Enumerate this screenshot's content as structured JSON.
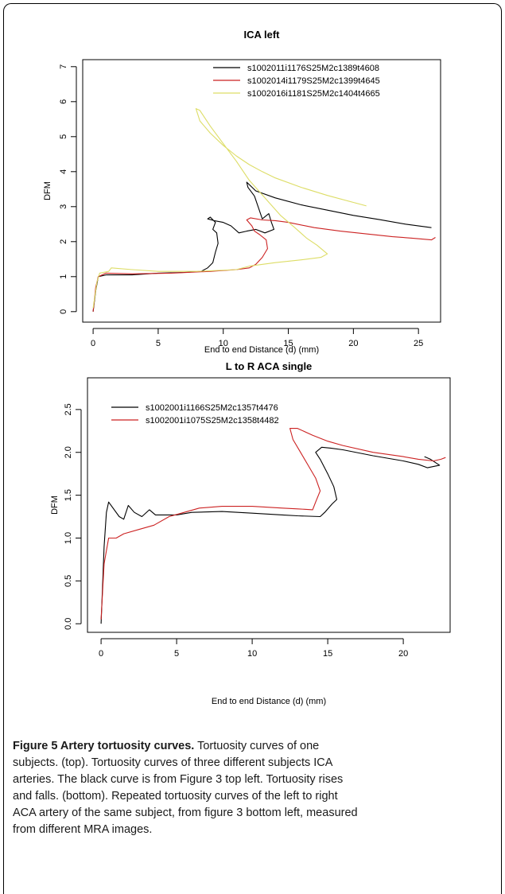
{
  "chart_data": [
    {
      "type": "line",
      "title": "ICA left",
      "xlabel": "End to end Distance (d) (mm)",
      "ylabel": "DFM",
      "xlim": [
        -0.8,
        26.7
      ],
      "ylim": [
        -0.3,
        7.2
      ],
      "xticks": [
        0,
        5,
        10,
        15,
        20,
        25
      ],
      "yticks": [
        0,
        1,
        2,
        3,
        4,
        5,
        6,
        7
      ],
      "legend_position": "top-right",
      "series": [
        {
          "name": "s1002011i1176S25M2c1389t4608",
          "color": "#000000",
          "points": [
            [
              0,
              0
            ],
            [
              0.2,
              0.6
            ],
            [
              0.4,
              1.0
            ],
            [
              1,
              1.05
            ],
            [
              3,
              1.05
            ],
            [
              5,
              1.1
            ],
            [
              7,
              1.12
            ],
            [
              8.3,
              1.15
            ],
            [
              8.8,
              1.25
            ],
            [
              9.2,
              1.4
            ],
            [
              9.4,
              1.7
            ],
            [
              9.6,
              1.95
            ],
            [
              9.5,
              2.25
            ],
            [
              9.2,
              2.35
            ],
            [
              9.4,
              2.55
            ],
            [
              9.0,
              2.7
            ],
            [
              8.8,
              2.65
            ],
            [
              9.3,
              2.6
            ],
            [
              10.0,
              2.55
            ],
            [
              10.6,
              2.45
            ],
            [
              11.2,
              2.25
            ],
            [
              11.8,
              2.3
            ],
            [
              12.5,
              2.35
            ],
            [
              13.2,
              2.25
            ],
            [
              13.9,
              2.35
            ],
            [
              13.7,
              2.55
            ],
            [
              13.5,
              2.8
            ],
            [
              13.0,
              2.65
            ],
            [
              12.4,
              3.3
            ],
            [
              11.9,
              3.55
            ],
            [
              11.8,
              3.7
            ],
            [
              12.5,
              3.45
            ],
            [
              14,
              3.25
            ],
            [
              16,
              3.05
            ],
            [
              18,
              2.9
            ],
            [
              20,
              2.75
            ],
            [
              22,
              2.63
            ],
            [
              24,
              2.5
            ],
            [
              26,
              2.4
            ]
          ]
        },
        {
          "name": "s1002014i1179S25M2c1399t4645",
          "color": "#cc2222",
          "points": [
            [
              0,
              0
            ],
            [
              0.2,
              0.7
            ],
            [
              0.4,
              1.0
            ],
            [
              1,
              1.1
            ],
            [
              3,
              1.08
            ],
            [
              6,
              1.1
            ],
            [
              9,
              1.15
            ],
            [
              11,
              1.2
            ],
            [
              12,
              1.25
            ],
            [
              12.5,
              1.35
            ],
            [
              13,
              1.55
            ],
            [
              13.4,
              1.8
            ],
            [
              13.3,
              2.05
            ],
            [
              12.8,
              2.2
            ],
            [
              12.4,
              2.3
            ],
            [
              12.2,
              2.45
            ],
            [
              11.8,
              2.62
            ],
            [
              12.1,
              2.68
            ],
            [
              13,
              2.62
            ],
            [
              14,
              2.6
            ],
            [
              15,
              2.55
            ],
            [
              17,
              2.4
            ],
            [
              19,
              2.3
            ],
            [
              21,
              2.22
            ],
            [
              23,
              2.14
            ],
            [
              24.5,
              2.1
            ],
            [
              26,
              2.05
            ],
            [
              26.3,
              2.12
            ]
          ]
        },
        {
          "name": "s1002016i1181S25M2c1404t4665",
          "color": "#dddd66",
          "points": [
            [
              0,
              0.1
            ],
            [
              0.3,
              0.85
            ],
            [
              0.5,
              1.1
            ],
            [
              1.2,
              1.15
            ],
            [
              1.4,
              1.25
            ],
            [
              3,
              1.2
            ],
            [
              5,
              1.15
            ],
            [
              8,
              1.15
            ],
            [
              11,
              1.2
            ],
            [
              12,
              1.3
            ],
            [
              14,
              1.4
            ],
            [
              16,
              1.48
            ],
            [
              17.5,
              1.55
            ],
            [
              18,
              1.65
            ],
            [
              17.2,
              1.9
            ],
            [
              16.4,
              2.1
            ],
            [
              15.5,
              2.4
            ],
            [
              14.4,
              2.75
            ],
            [
              13.2,
              3.25
            ],
            [
              12,
              3.75
            ],
            [
              11,
              4.3
            ],
            [
              10,
              4.8
            ],
            [
              9,
              5.3
            ],
            [
              8.2,
              5.75
            ],
            [
              7.9,
              5.8
            ],
            [
              8.2,
              5.45
            ],
            [
              9,
              5.1
            ],
            [
              10,
              4.75
            ],
            [
              11,
              4.45
            ],
            [
              12,
              4.2
            ],
            [
              13,
              4.0
            ],
            [
              14,
              3.82
            ],
            [
              16,
              3.55
            ],
            [
              18,
              3.32
            ],
            [
              20,
              3.12
            ],
            [
              21,
              3.02
            ]
          ]
        }
      ]
    },
    {
      "type": "line",
      "title": "L to R ACA single",
      "xlabel": "End to end Distance (d) (mm)",
      "ylabel": "DFM",
      "xlim": [
        -0.9,
        23.1
      ],
      "ylim": [
        -0.1,
        2.87
      ],
      "xticks": [
        0,
        5,
        10,
        15,
        20
      ],
      "yticks": [
        0.0,
        0.5,
        1.0,
        1.5,
        2.0,
        2.5
      ],
      "ytick_labels": [
        "0.0",
        "0.5",
        "1.0",
        "1.5",
        "2.0",
        "2.5"
      ],
      "legend_position": "top-left",
      "series": [
        {
          "name": "s1002001i1166S25M2c1357t4476",
          "color": "#000000",
          "points": [
            [
              0,
              0
            ],
            [
              0.2,
              0.9
            ],
            [
              0.35,
              1.3
            ],
            [
              0.5,
              1.42
            ],
            [
              1.2,
              1.25
            ],
            [
              1.5,
              1.22
            ],
            [
              1.8,
              1.38
            ],
            [
              2.2,
              1.3
            ],
            [
              2.7,
              1.25
            ],
            [
              3.2,
              1.33
            ],
            [
              3.6,
              1.27
            ],
            [
              5,
              1.27
            ],
            [
              6,
              1.3
            ],
            [
              8,
              1.31
            ],
            [
              10,
              1.29
            ],
            [
              12,
              1.27
            ],
            [
              13,
              1.26
            ],
            [
              14.5,
              1.25
            ],
            [
              14.8,
              1.3
            ],
            [
              15.3,
              1.4
            ],
            [
              15.6,
              1.45
            ],
            [
              15.4,
              1.6
            ],
            [
              15,
              1.75
            ],
            [
              14.5,
              1.92
            ],
            [
              14.2,
              2.0
            ],
            [
              14.6,
              2.06
            ],
            [
              15.2,
              2.05
            ],
            [
              16,
              2.03
            ],
            [
              18,
              1.96
            ],
            [
              20,
              1.9
            ],
            [
              21,
              1.86
            ],
            [
              21.6,
              1.82
            ],
            [
              22.4,
              1.85
            ],
            [
              21.8,
              1.92
            ],
            [
              21.4,
              1.95
            ]
          ]
        },
        {
          "name": "s1002001i1075S25M2c1358t4482",
          "color": "#cc2222",
          "points": [
            [
              0,
              0.05
            ],
            [
              0.2,
              0.7
            ],
            [
              0.5,
              1.0
            ],
            [
              1,
              1.0
            ],
            [
              1.5,
              1.05
            ],
            [
              2.5,
              1.1
            ],
            [
              3.5,
              1.15
            ],
            [
              4.5,
              1.25
            ],
            [
              5.5,
              1.3
            ],
            [
              6.5,
              1.35
            ],
            [
              8,
              1.37
            ],
            [
              10,
              1.37
            ],
            [
              12,
              1.35
            ],
            [
              13,
              1.34
            ],
            [
              14,
              1.33
            ],
            [
              14.2,
              1.42
            ],
            [
              14.5,
              1.55
            ],
            [
              14.2,
              1.7
            ],
            [
              13.7,
              1.85
            ],
            [
              13.2,
              2.0
            ],
            [
              12.7,
              2.15
            ],
            [
              12.5,
              2.28
            ],
            [
              13,
              2.28
            ],
            [
              14,
              2.2
            ],
            [
              15,
              2.13
            ],
            [
              16,
              2.08
            ],
            [
              18,
              2.0
            ],
            [
              20,
              1.95
            ],
            [
              21,
              1.92
            ],
            [
              22,
              1.9
            ],
            [
              22.5,
              1.92
            ],
            [
              22.8,
              1.94
            ]
          ]
        }
      ]
    }
  ],
  "caption": {
    "heading": "Figure 5 Artery tortuosity curves.",
    "lines": [
      " Tortuosity curves of one",
      "subjects. (top). Tortuosity curves of three different subjects ICA",
      "arteries. The black curve is from Figure 3 top left. Tortuosity rises",
      "and falls. (bottom). Repeated tortuosity curves of the left to right",
      "ACA artery of the same subject, from figure 3 bottom left, measured",
      "from different MRA images."
    ]
  }
}
